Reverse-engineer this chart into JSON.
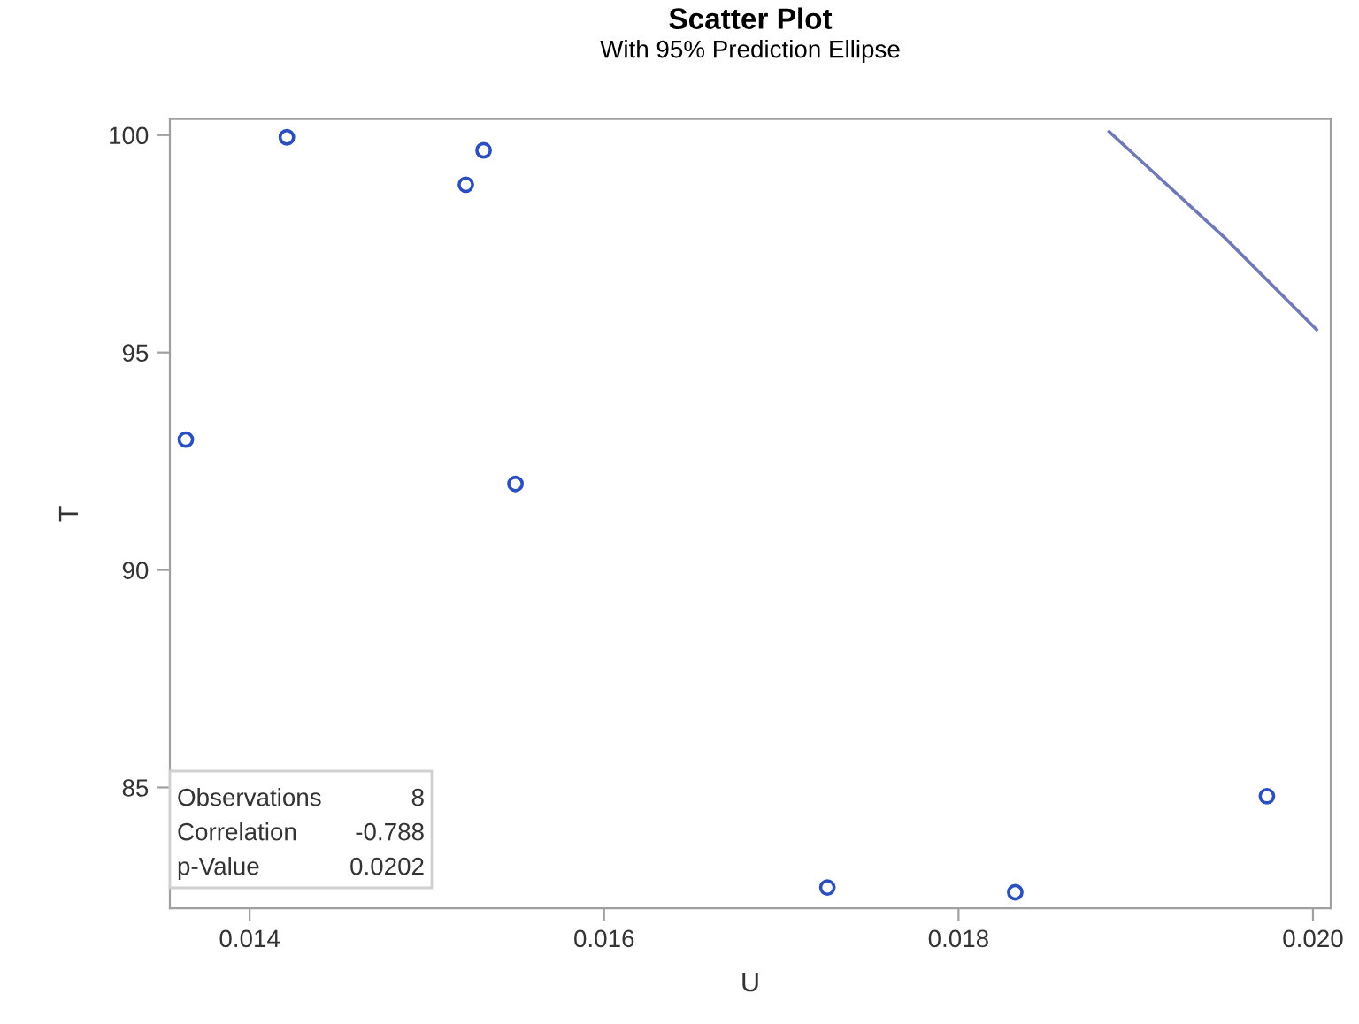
{
  "chart_data": {
    "type": "scatter",
    "title": "Scatter Plot",
    "subtitle": "With 95% Prediction Ellipse",
    "xlabel": "U",
    "ylabel": "T",
    "xlim": [
      0.01355,
      0.0201
    ],
    "ylim": [
      82.22,
      100.37
    ],
    "xticks": [
      0.014,
      0.016,
      0.018,
      {
        "value": 0.02,
        "label": "0.020"
      }
    ],
    "yticks": [
      85,
      90,
      95,
      100
    ],
    "marker": "circle",
    "grid": false,
    "legend": false,
    "series": [
      {
        "color": "#2b4fbf",
        "x": [
          0.01364,
          0.01421,
          0.01522,
          0.01532,
          0.0155,
          0.01726,
          0.01832,
          0.01974
        ],
        "values": [
          93.0,
          99.95,
          98.86,
          99.65,
          91.98,
          82.7,
          82.59,
          84.8
        ]
      },
      {
        "type": "line",
        "color": "#6f79b8",
        "marker": "none",
        "x": [
          0.01885,
          0.0195,
          0.02002
        ],
        "values": [
          100.08,
          97.65,
          95.53
        ]
      }
    ],
    "annotations": [
      "Observations",
      "8",
      "Correlation",
      "-0.788",
      "p-Value",
      "0.0202"
    ]
  }
}
